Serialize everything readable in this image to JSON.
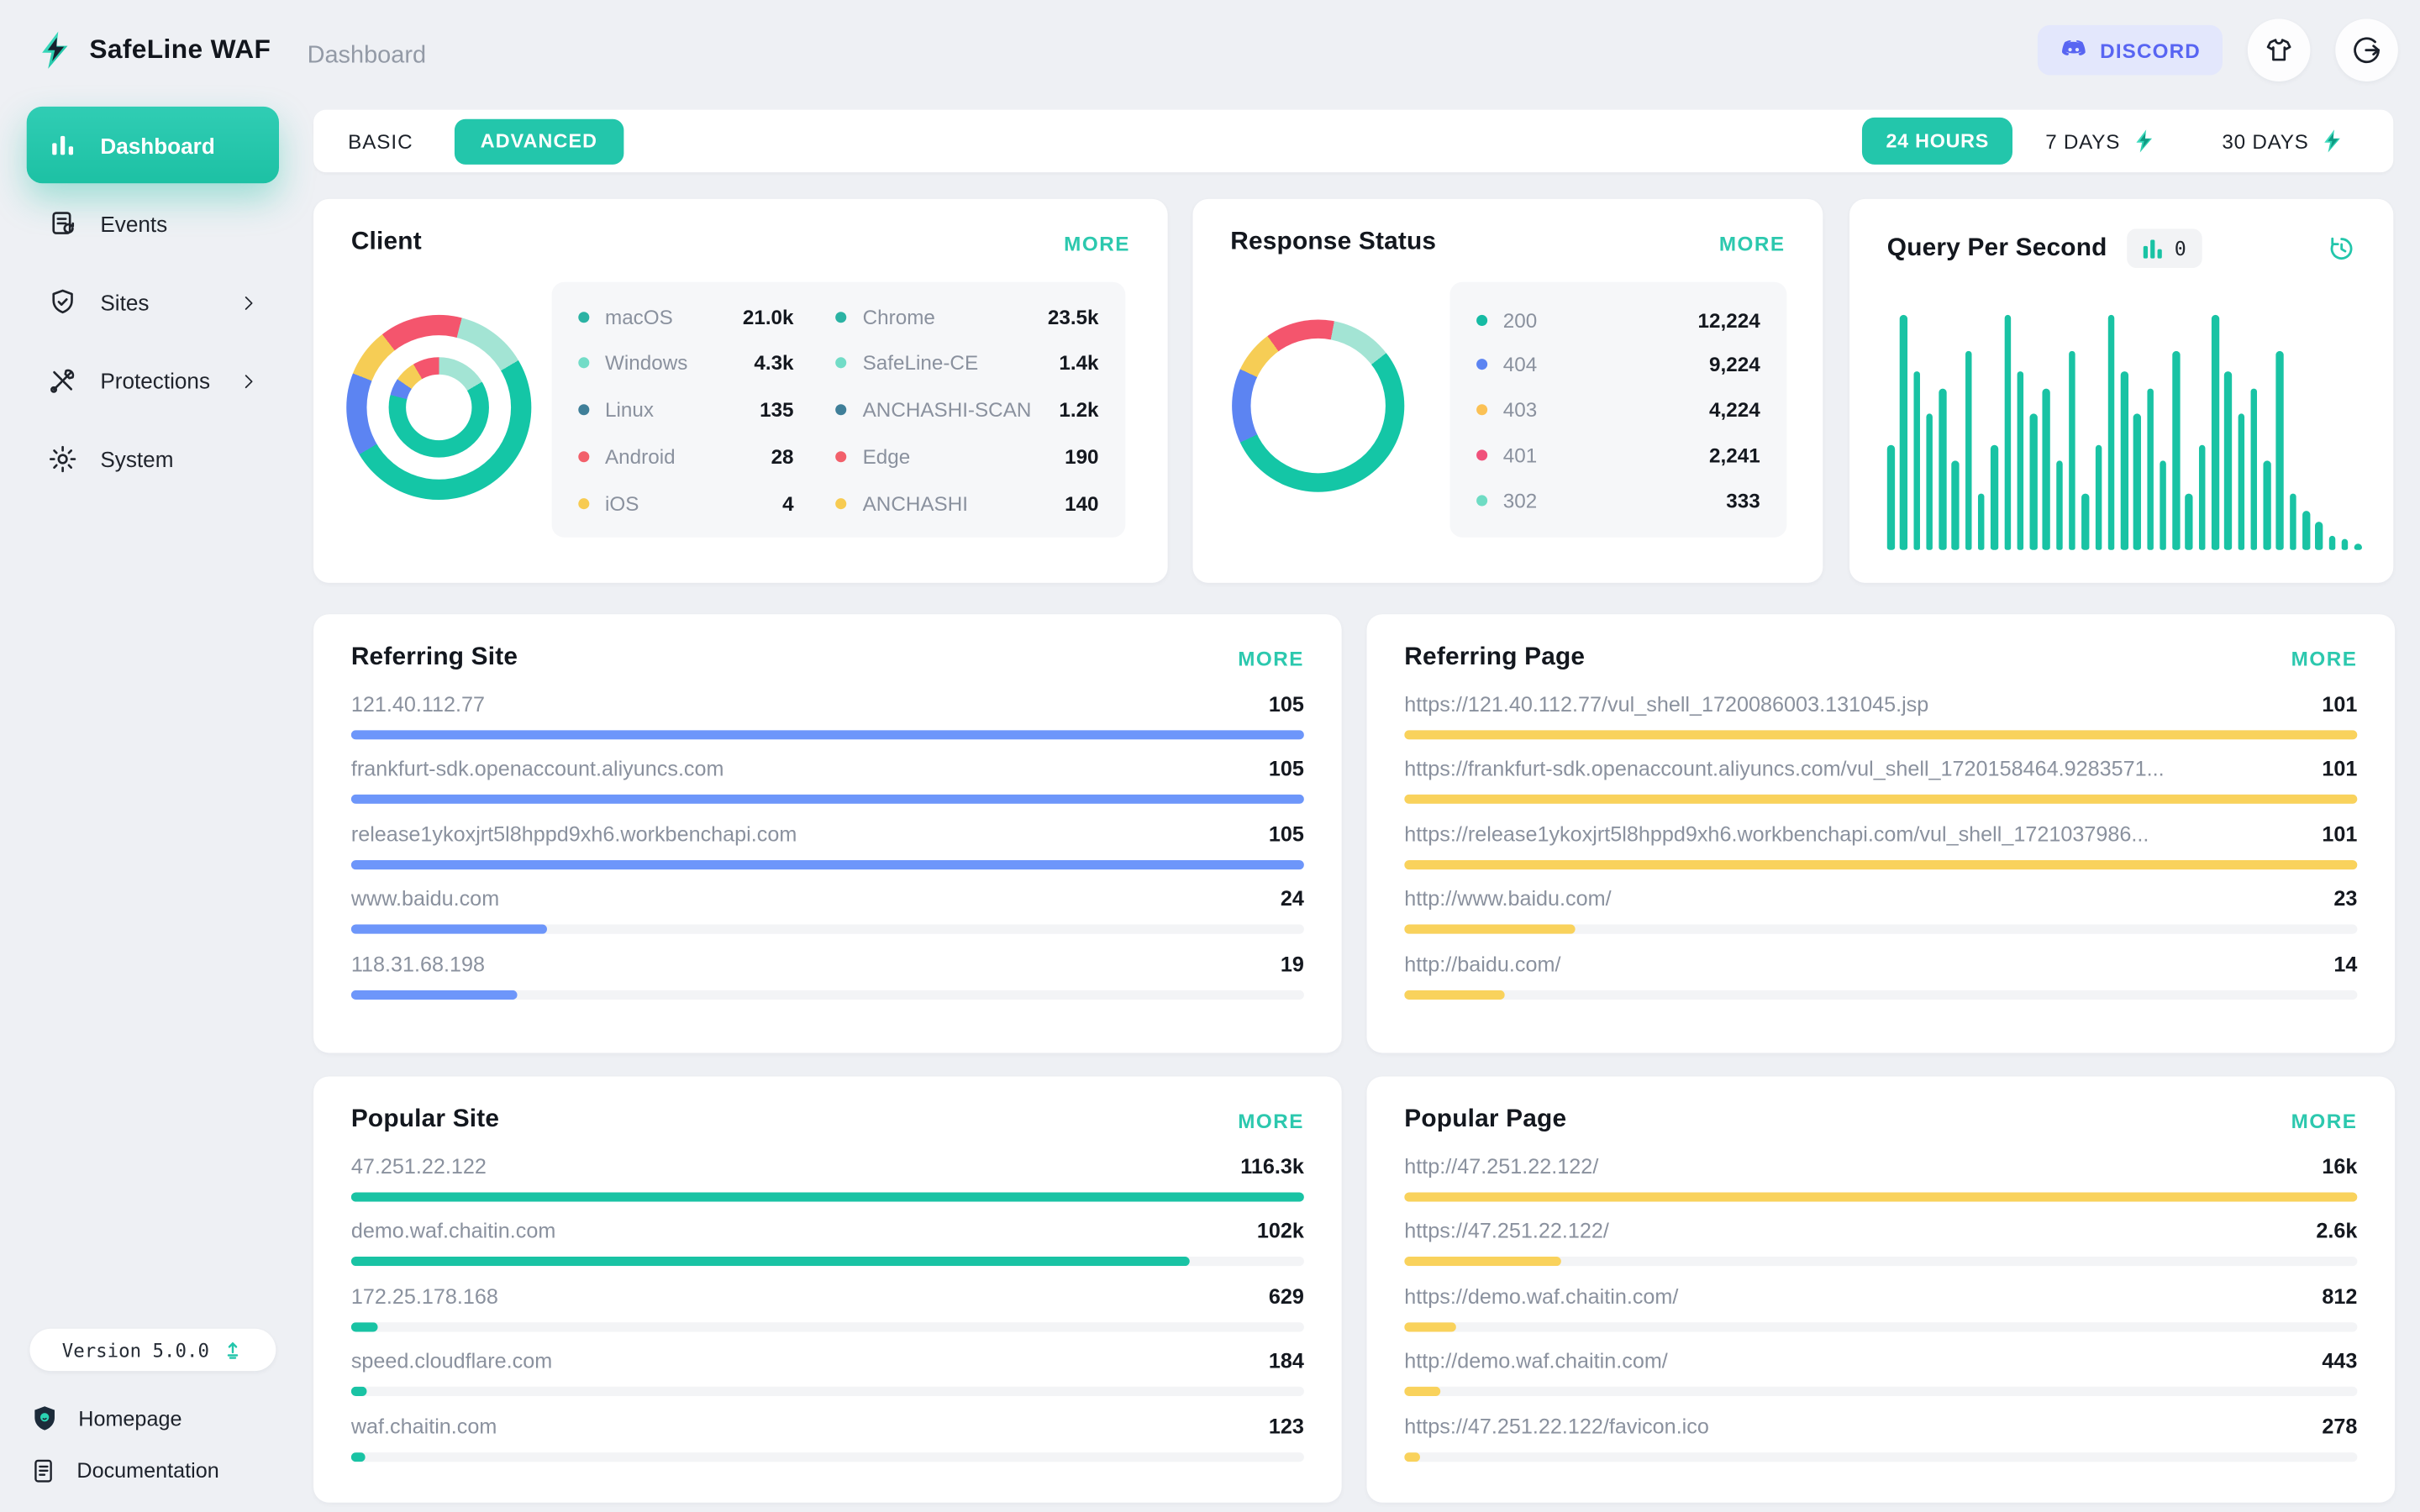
{
  "header": {
    "app_name": "SafeLine WAF",
    "page_title": "Dashboard",
    "discord_label": "DISCORD"
  },
  "sidebar": {
    "items": [
      {
        "label": "Dashboard",
        "icon": "bar-chart",
        "active": true,
        "chevron": false
      },
      {
        "label": "Events",
        "icon": "events-doc",
        "active": false,
        "chevron": false
      },
      {
        "label": "Sites",
        "icon": "shield-check",
        "active": false,
        "chevron": true
      },
      {
        "label": "Protections",
        "icon": "tools",
        "active": false,
        "chevron": true
      },
      {
        "label": "System",
        "icon": "gear",
        "active": false,
        "chevron": false
      }
    ],
    "version_label": "Version 5.0.0",
    "links": [
      {
        "label": "Homepage",
        "icon": "shield-logo"
      },
      {
        "label": "Documentation",
        "icon": "document"
      }
    ]
  },
  "toolbar": {
    "basic_label": "BASIC",
    "advanced_label": "ADVANCED",
    "ranges": [
      {
        "label": "24 HOURS",
        "active": true,
        "bolt": false
      },
      {
        "label": "7 DAYS",
        "active": false,
        "bolt": true
      },
      {
        "label": "30 DAYS",
        "active": false,
        "bolt": true
      }
    ]
  },
  "colors": {
    "accent_teal": "#23C6AB",
    "chart_teal": "#19C3A4",
    "bar_blue": "#6D96FA",
    "bar_yellow": "#F9D25C",
    "discord_purple": "#5865F2"
  },
  "client_card": {
    "title": "Client",
    "more_label": "MORE",
    "legend_os": [
      {
        "label": "macOS",
        "value": "21.0k",
        "color": "#2BB3A4"
      },
      {
        "label": "Windows",
        "value": "4.3k",
        "color": "#72DCC7"
      },
      {
        "label": "Linux",
        "value": "135",
        "color": "#3F7F99"
      },
      {
        "label": "Android",
        "value": "28",
        "color": "#F2606B"
      },
      {
        "label": "iOS",
        "value": "4",
        "color": "#F7CB52"
      }
    ],
    "legend_browser": [
      {
        "label": "Chrome",
        "value": "23.5k",
        "color": "#2BB3A4"
      },
      {
        "label": "SafeLine-CE",
        "value": "1.4k",
        "color": "#72DCC7"
      },
      {
        "label": "ANCHASHI-SCAN",
        "value": "1.2k",
        "color": "#3F7F99"
      },
      {
        "label": "Edge",
        "value": "190",
        "color": "#F2606B"
      },
      {
        "label": "ANCHASHI",
        "value": "140",
        "color": "#F7CB52"
      }
    ],
    "donut_outer": [
      {
        "color": "#F4556D",
        "pct": 4
      },
      {
        "color": "#A3E4D4",
        "pct": 12.5
      },
      {
        "color": "#14C6A6",
        "pct": 50
      },
      {
        "color": "#5C84F2",
        "pct": 14.5
      },
      {
        "color": "#F6CD55",
        "pct": 8.5
      },
      {
        "color": "#F4556D",
        "pct": 10.5
      }
    ],
    "donut_inner": [
      {
        "color": "#A3E4D4",
        "pct": 16.5
      },
      {
        "color": "#14C6A6",
        "pct": 62.5
      },
      {
        "color": "#5C84F2",
        "pct": 5.5
      },
      {
        "color": "#F6CD55",
        "pct": 7
      },
      {
        "color": "#F4556D",
        "pct": 8.5
      }
    ]
  },
  "response_card": {
    "title": "Response Status",
    "more_label": "MORE",
    "legend": [
      {
        "label": "200",
        "value": "12,224",
        "color": "#16BBA4"
      },
      {
        "label": "404",
        "value": "9,224",
        "color": "#5C84F2"
      },
      {
        "label": "403",
        "value": "4,224",
        "color": "#FBC155"
      },
      {
        "label": "401",
        "value": "2,241",
        "color": "#F0517B"
      },
      {
        "label": "302",
        "value": "333",
        "color": "#6FDCC4"
      }
    ],
    "donut": [
      {
        "color": "#F4556D",
        "pct": 3
      },
      {
        "color": "#A3E4D4",
        "pct": 11.5
      },
      {
        "color": "#14C6A6",
        "pct": 53.5
      },
      {
        "color": "#5C84F2",
        "pct": 14
      },
      {
        "color": "#F6CD55",
        "pct": 8
      },
      {
        "color": "#F4556D",
        "pct": 10
      }
    ]
  },
  "qps_card": {
    "title": "Query Per Second",
    "badge_value": "0",
    "bars": [
      45,
      100,
      76,
      58,
      69,
      38,
      85,
      24,
      45,
      100,
      76,
      58,
      69,
      38,
      85,
      24,
      45,
      100,
      76,
      58,
      69,
      38,
      85,
      24,
      45,
      100,
      76,
      58,
      69,
      38,
      85,
      24,
      17,
      12,
      6,
      5,
      3
    ]
  },
  "referring_site": {
    "title": "Referring Site",
    "more_label": "MORE",
    "bar_color": "#6D96FA",
    "rows": [
      {
        "label": "121.40.112.77",
        "value": "105",
        "pct": 100
      },
      {
        "label": "frankfurt-sdk.openaccount.aliyuncs.com",
        "value": "105",
        "pct": 100
      },
      {
        "label": "release1ykoxjrt5l8hppd9xh6.workbenchapi.com",
        "value": "105",
        "pct": 100
      },
      {
        "label": "www.baidu.com",
        "value": "24",
        "pct": 20.5
      },
      {
        "label": "118.31.68.198",
        "value": "19",
        "pct": 17.5
      }
    ]
  },
  "referring_page": {
    "title": "Referring Page",
    "more_label": "MORE",
    "bar_color": "#F9D25C",
    "rows": [
      {
        "label": "https://121.40.112.77/vul_shell_1720086003.131045.jsp",
        "value": "101",
        "pct": 100
      },
      {
        "label": "https://frankfurt-sdk.openaccount.aliyuncs.com/vul_shell_1720158464.9283571...",
        "value": "101",
        "pct": 100
      },
      {
        "label": "https://release1ykoxjrt5l8hppd9xh6.workbenchapi.com/vul_shell_1721037986...",
        "value": "101",
        "pct": 100
      },
      {
        "label": "http://www.baidu.com/",
        "value": "23",
        "pct": 18
      },
      {
        "label": "http://baidu.com/",
        "value": "14",
        "pct": 10.5
      }
    ]
  },
  "popular_site": {
    "title": "Popular Site",
    "more_label": "MORE",
    "bar_color": "#19C3A4",
    "rows": [
      {
        "label": "47.251.22.122",
        "value": "116.3k",
        "pct": 100
      },
      {
        "label": "demo.waf.chaitin.com",
        "value": "102k",
        "pct": 88
      },
      {
        "label": "172.25.178.168",
        "value": "629",
        "pct": 2.8
      },
      {
        "label": "speed.cloudflare.com",
        "value": "184",
        "pct": 1.6
      },
      {
        "label": "waf.chaitin.com",
        "value": "123",
        "pct": 1.4
      }
    ]
  },
  "popular_page": {
    "title": "Popular Page",
    "more_label": "MORE",
    "bar_color": "#F9D25C",
    "rows": [
      {
        "label": "http://47.251.22.122/",
        "value": "16k",
        "pct": 100
      },
      {
        "label": "https://47.251.22.122/",
        "value": "2.6k",
        "pct": 16.5
      },
      {
        "label": "https://demo.waf.chaitin.com/",
        "value": "812",
        "pct": 5.5
      },
      {
        "label": "http://demo.waf.chaitin.com/",
        "value": "443",
        "pct": 3.8
      },
      {
        "label": "https://47.251.22.122/favicon.ico",
        "value": "278",
        "pct": 1.6
      }
    ]
  }
}
